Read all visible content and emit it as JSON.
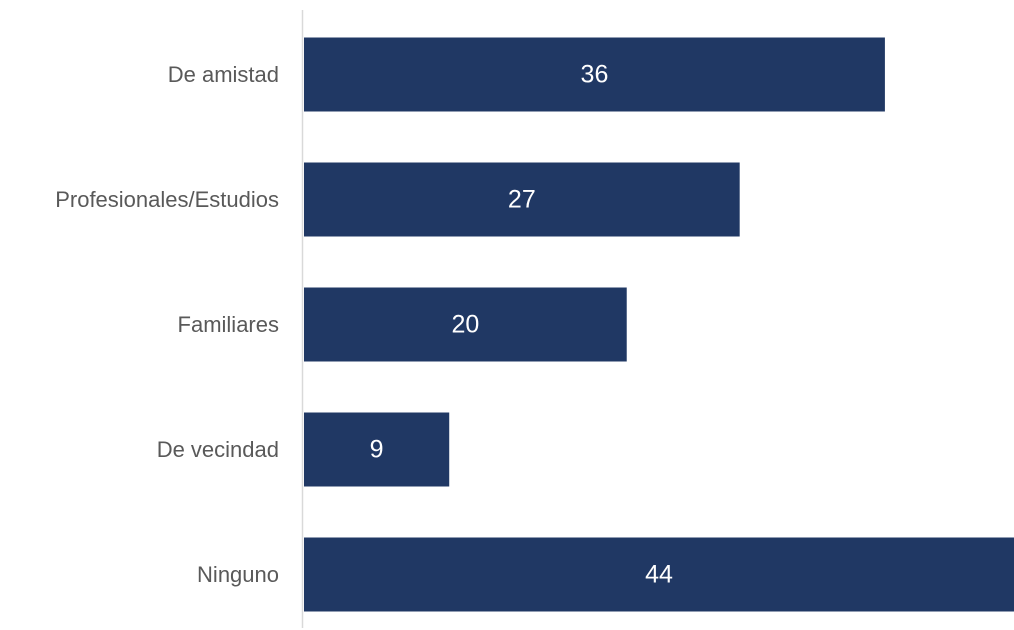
{
  "chart_data": {
    "type": "bar",
    "orientation": "horizontal",
    "categories": [
      "De amistad",
      "Profesionales/Estudios",
      "Familiares",
      "De vecindad",
      "Ninguno"
    ],
    "values": [
      36,
      27,
      20,
      9,
      44
    ],
    "title": "",
    "xlabel": "",
    "ylabel": "",
    "xlim": [
      0,
      44
    ],
    "grid": false,
    "legend": "none",
    "data_labels": true,
    "colors": {
      "bar": "#203864",
      "axis": "#d9d9d9",
      "category_text": "#595959",
      "value_text": "#ffffff"
    }
  }
}
